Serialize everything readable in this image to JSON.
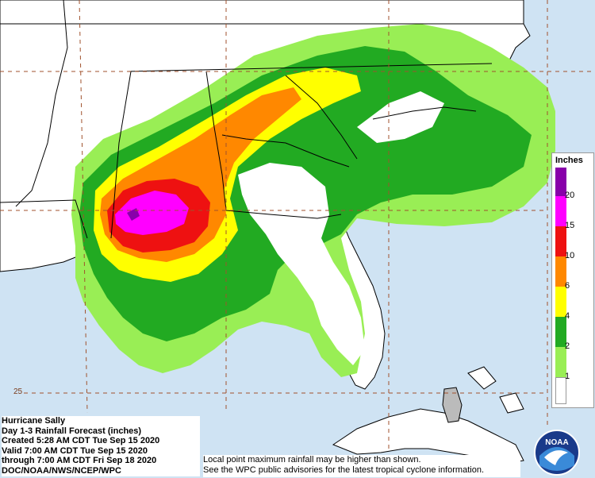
{
  "legend": {
    "title": "Inches",
    "levels": [
      {
        "label": "1",
        "color": "#ffffff"
      },
      {
        "label": "2",
        "color": "#99ee55"
      },
      {
        "label": "4",
        "color": "#22aa22"
      },
      {
        "label": "6",
        "color": "#ffff00"
      },
      {
        "label": "10",
        "color": "#ff8800"
      },
      {
        "label": "15",
        "color": "#ee1111"
      },
      {
        "label": "20",
        "color": "#ff00ff"
      },
      {
        "label": "",
        "color": "#8800aa"
      }
    ],
    "top_color": "#8800aa"
  },
  "info": {
    "line1": "Hurricane Sally",
    "line2": "Day 1-3 Rainfall Forecast (inches)",
    "line3": "Created 5:28 AM CDT Tue Sep 15 2020",
    "line4": "Valid 7:00 AM CDT Tue Sep 15 2020",
    "line5": "through 7:00 AM CDT Fri Sep 18 2020",
    "line6": "DOC/NOAA/NWS/NCEP/WPC"
  },
  "disclaimer": {
    "line1": "Local point maximum rainfall may be higher than shown.",
    "line2": "See the WPC public advisories for the latest tropical cyclone information."
  },
  "latitude_label": "25",
  "logo": {
    "text": "NOAA"
  },
  "colors": {
    "ocean": "#cfe3f3",
    "land": "#ffffff",
    "light_green": "#99ee55",
    "green": "#22aa22",
    "yellow": "#ffff00",
    "orange": "#ff8800",
    "red": "#ee1111",
    "magenta": "#ff00ff",
    "purple": "#8800aa",
    "grid": "#a0522d"
  }
}
